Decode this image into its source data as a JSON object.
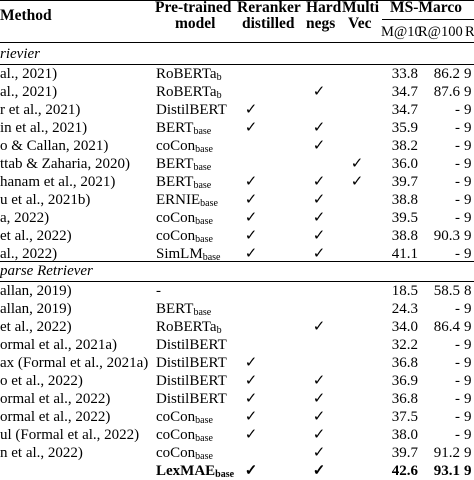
{
  "header": {
    "method": "Method",
    "pretrained_line1": "Pre-trained",
    "pretrained_line2": "model",
    "reranker_line1": "Reranker",
    "reranker_line2": "distilled",
    "hard_line1": "Hard",
    "hard_line2": "negs",
    "multi_line1": "Multi",
    "multi_line2": "Vec",
    "msmarco": "MS-Marco",
    "metric_m10": "M@10",
    "metric_r100": "R@100",
    "metric_r1k": "R"
  },
  "sections": {
    "dense": "rievier",
    "sparse": "parse Retriever"
  },
  "dense_rows": [
    {
      "method": "al., 2021)",
      "model": "RoBERTa",
      "sub": "b",
      "rr": "",
      "hn": "",
      "mv": "",
      "v1": "33.8",
      "v2": "86.2",
      "v3": "9"
    },
    {
      "method": "al., 2021)",
      "model": "RoBERTa",
      "sub": "b",
      "rr": "",
      "hn": "✓",
      "mv": "",
      "v1": "34.7",
      "v2": "87.6",
      "v3": "9"
    },
    {
      "method": "r et al., 2021)",
      "model": "DistilBERT",
      "sub": "",
      "rr": "✓",
      "hn": "",
      "mv": "",
      "v1": "34.7",
      "v2": "-",
      "v3": "9"
    },
    {
      "method": "in et al., 2021)",
      "model": "BERT",
      "sub": "base",
      "rr": "✓",
      "hn": "✓",
      "mv": "",
      "v1": "35.9",
      "v2": "-",
      "v3": "9"
    },
    {
      "method": "o & Callan, 2021)",
      "model": "coCon",
      "sub": "base",
      "rr": "",
      "hn": "✓",
      "mv": "",
      "v1": "38.2",
      "v2": "-",
      "v3": "9"
    },
    {
      "method": "ttab & Zaharia, 2020)",
      "model": "BERT",
      "sub": "base",
      "rr": "",
      "hn": "",
      "mv": "✓",
      "v1": "36.0",
      "v2": "-",
      "v3": "9"
    },
    {
      "method": "hanam et al., 2021)",
      "model": "BERT",
      "sub": "base",
      "rr": "✓",
      "hn": "✓",
      "mv": "✓",
      "v1": "39.7",
      "v2": "-",
      "v3": "9"
    },
    {
      "method": "u et al., 2021b)",
      "model": "ERNIE",
      "sub": "base",
      "rr": "✓",
      "hn": "✓",
      "mv": "",
      "v1": "38.8",
      "v2": "-",
      "v3": "9"
    },
    {
      "method": "a, 2022)",
      "model": "coCon",
      "sub": "base",
      "rr": "✓",
      "hn": "✓",
      "mv": "",
      "v1": "39.5",
      "v2": "-",
      "v3": "9"
    },
    {
      "method": "et al., 2022)",
      "model": "coCon",
      "sub": "base",
      "rr": "✓",
      "hn": "✓",
      "mv": "",
      "v1": "38.8",
      "v2": "90.3",
      "v3": "9"
    },
    {
      "method": "al., 2022)",
      "model": "SimLM",
      "sub": "base",
      "rr": "✓",
      "hn": "✓",
      "mv": "",
      "v1": "41.1",
      "v2": "-",
      "v3": "9"
    }
  ],
  "sparse_rows": [
    {
      "method": "allan, 2019)",
      "model": "-",
      "sub": "",
      "rr": "",
      "hn": "",
      "mv": "",
      "v1": "18.5",
      "v2": "58.5",
      "v3": "8"
    },
    {
      "method": "allan, 2019)",
      "model": "BERT",
      "sub": "base",
      "rr": "",
      "hn": "",
      "mv": "",
      "v1": "24.3",
      "v2": "-",
      "v3": "9"
    },
    {
      "method": "et al., 2022)",
      "model": "RoBERTa",
      "sub": "b",
      "rr": "",
      "hn": "✓",
      "mv": "",
      "v1": "34.0",
      "v2": "86.4",
      "v3": "9"
    },
    {
      "method": "ormal et al., 2021a)",
      "model": "DistilBERT",
      "sub": "",
      "rr": "",
      "hn": "",
      "mv": "",
      "v1": "32.2",
      "v2": "-",
      "v3": "9"
    },
    {
      "method": "ax (Formal et al., 2021a)",
      "model": "DistilBERT",
      "sub": "",
      "rr": "✓",
      "hn": "",
      "mv": "",
      "v1": "36.8",
      "v2": "-",
      "v3": "9"
    },
    {
      "method": "o et al., 2022)",
      "model": "DistilBERT",
      "sub": "",
      "rr": "✓",
      "hn": "✓",
      "mv": "",
      "v1": "36.9",
      "v2": "-",
      "v3": "9"
    },
    {
      "method": "ormal et al., 2022)",
      "model": "DistilBERT",
      "sub": "",
      "rr": "✓",
      "hn": "✓",
      "mv": "",
      "v1": "36.8",
      "v2": "-",
      "v3": "9"
    },
    {
      "method": "ormal et al., 2022)",
      "model": "coCon",
      "sub": "base",
      "rr": "✓",
      "hn": "✓",
      "mv": "",
      "v1": "37.5",
      "v2": "-",
      "v3": "9"
    },
    {
      "method": "ul (Formal et al., 2022)",
      "model": "coCon",
      "sub": "base",
      "rr": "✓",
      "hn": "✓",
      "mv": "",
      "v1": "38.0",
      "v2": "-",
      "v3": "9"
    },
    {
      "method": "n et al., 2022)",
      "model": "coCon",
      "sub": "base",
      "rr": "",
      "hn": "✓",
      "mv": "",
      "v1": "39.7",
      "v2": "91.2",
      "v3": "9"
    },
    {
      "method": "",
      "model": "LexMAE",
      "sub": "base",
      "rr": "✓",
      "hn": "✓",
      "mv": "",
      "v1": "42.6",
      "v2": "93.1",
      "v3": "9",
      "bold": true
    }
  ]
}
